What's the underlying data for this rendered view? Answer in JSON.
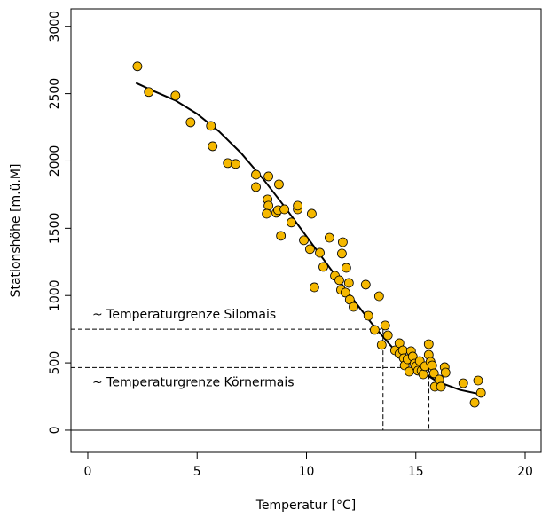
{
  "chart_data": {
    "type": "scatter",
    "x_label": "Temperatur [°C]",
    "y_label": "Stationshöhe [m.ü.M]",
    "xlim": [
      -0.77,
      20.73
    ],
    "ylim": [
      -165,
      3130
    ],
    "xticks": [
      0,
      5,
      10,
      15,
      20
    ],
    "yticks": [
      0,
      500,
      1000,
      1500,
      2000,
      2500,
      3000
    ],
    "color": "#f5b800",
    "baseline": 0,
    "x": [
      2.27,
      2.79,
      4.01,
      4.7,
      5.63,
      5.71,
      6.4,
      6.76,
      7.69,
      7.69,
      8.26,
      8.22,
      8.26,
      8.18,
      8.62,
      8.7,
      8.74,
      8.99,
      8.83,
      9.31,
      9.6,
      9.6,
      9.88,
      10.16,
      10.24,
      10.36,
      10.61,
      10.77,
      11.05,
      11.3,
      11.5,
      11.62,
      11.66,
      11.58,
      11.82,
      11.78,
      11.94,
      11.98,
      12.15,
      12.71,
      12.83,
      13.12,
      13.32,
      13.44,
      13.6,
      13.72,
      14.05,
      14.25,
      14.25,
      14.41,
      14.45,
      14.49,
      14.62,
      14.7,
      14.78,
      14.86,
      14.94,
      15.02,
      15.1,
      15.18,
      15.26,
      15.34,
      15.42,
      15.59,
      15.59,
      15.67,
      15.75,
      15.83,
      15.87,
      16.07,
      16.15,
      16.32,
      16.36,
      17.17,
      17.69,
      17.85,
      17.98
    ],
    "y": [
      2703,
      2512,
      2485,
      2287,
      2261,
      2109,
      1984,
      1978,
      1898,
      1806,
      1885,
      1714,
      1668,
      1608,
      1615,
      1635,
      1826,
      1641,
      1444,
      1543,
      1641,
      1668,
      1411,
      1345,
      1608,
      1061,
      1318,
      1213,
      1430,
      1147,
      1114,
      1312,
      1397,
      1042,
      1206,
      1022,
      1094,
      969,
      916,
      1081,
      850,
      745,
      995,
      633,
      778,
      705,
      593,
      646,
      567,
      593,
      534,
      481,
      527,
      435,
      587,
      547,
      494,
      475,
      442,
      514,
      442,
      415,
      475,
      639,
      560,
      508,
      481,
      422,
      323,
      376,
      323,
      468,
      428,
      349,
      204,
      369,
      277
    ],
    "curve": {
      "x": [
        2.2,
        3,
        4,
        5,
        6,
        7,
        8,
        9,
        10,
        11,
        12,
        13,
        14,
        15,
        16,
        17,
        18
      ],
      "y": [
        2580,
        2520,
        2450,
        2350,
        2220,
        2060,
        1870,
        1660,
        1440,
        1220,
        1000,
        790,
        600,
        460,
        360,
        300,
        265
      ]
    },
    "reference_lines": [
      {
        "label": "~ Temperaturgrenze Silomais",
        "x": 13.5,
        "y": 750
      },
      {
        "label": "~ Temperaturgrenze Körnermais",
        "x": 15.6,
        "y": 465
      }
    ]
  }
}
